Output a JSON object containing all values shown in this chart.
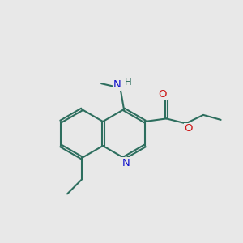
{
  "bg_color": "#e8e8e8",
  "bond_color": "#2d6e5e",
  "N_color": "#1414cc",
  "O_color": "#cc1414",
  "lw": 1.5,
  "dbo": 0.05,
  "bl": 1.0,
  "xlim": [
    0,
    10
  ],
  "ylim": [
    0,
    10
  ],
  "figsize": [
    3.0,
    3.0
  ],
  "dpi": 100
}
